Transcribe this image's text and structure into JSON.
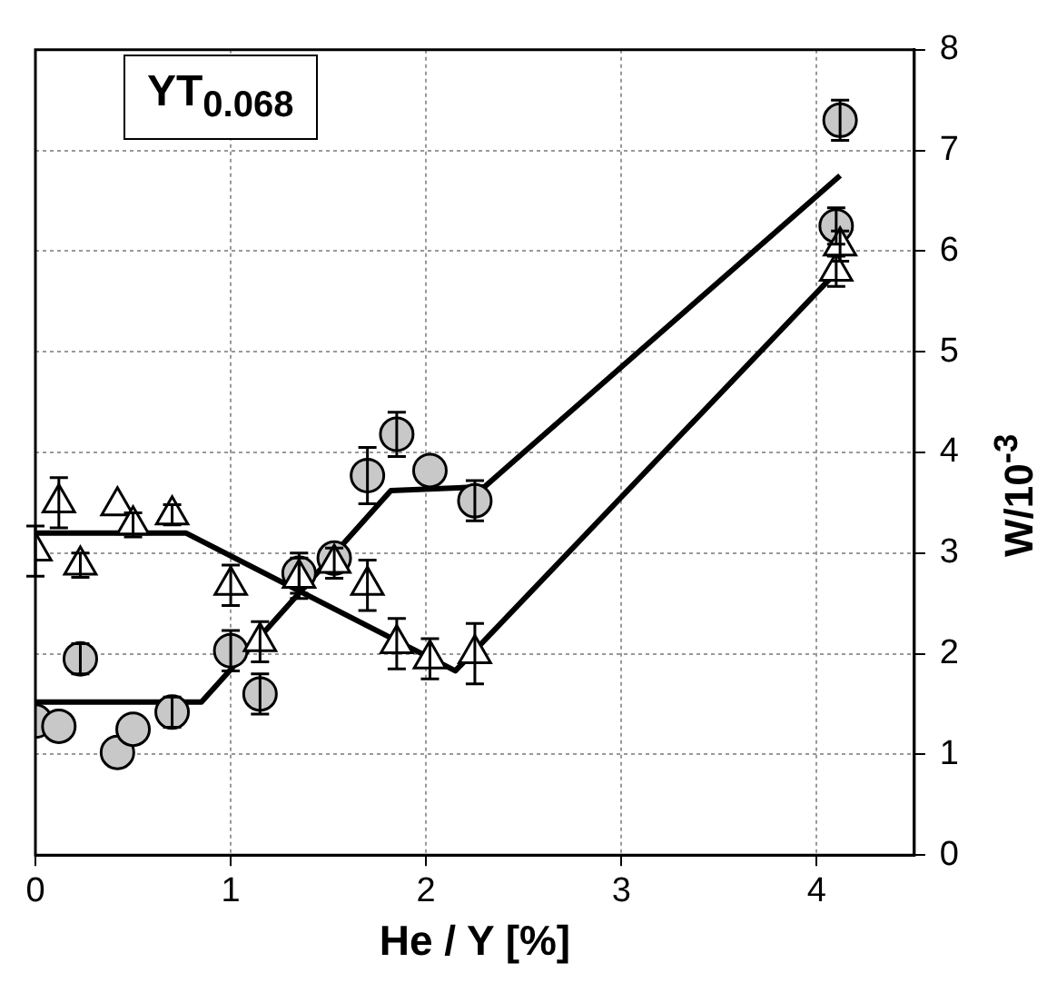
{
  "chart_data": {
    "type": "scatter",
    "xlabel": "He / Y [%]",
    "ylabel": "W/10$^{-3}$",
    "annotations": [
      "YT$_{0.068}$"
    ],
    "xlim": [
      0,
      4.5
    ],
    "xticks": [
      0,
      1,
      2,
      3,
      4
    ],
    "ylim": [
      0,
      8
    ],
    "yticks": [
      0,
      1,
      2,
      3,
      4,
      5,
      6,
      7,
      8
    ],
    "grid": true,
    "legend": false,
    "series": [
      {
        "marker": "circle",
        "color": "#c8c8c8",
        "x": [
          0,
          0.12,
          0.23,
          0.42,
          0.5,
          0.7,
          1.0,
          1.15,
          1.35,
          1.53,
          1.7,
          1.85,
          2.02,
          2.25,
          4.1,
          4.12
        ],
        "values": [
          1.33,
          1.28,
          1.95,
          1.02,
          1.25,
          1.42,
          2.03,
          1.6,
          2.8,
          2.95,
          3.77,
          4.18,
          3.82,
          3.52,
          6.25,
          7.3
        ],
        "errors": [
          null,
          null,
          0.15,
          null,
          null,
          0.15,
          0.2,
          0.2,
          0.2,
          null,
          0.28,
          0.22,
          null,
          0.2,
          0.18,
          0.2
        ]
      },
      {
        "marker": "triangle",
        "color": "#ffffff",
        "x": [
          0,
          0.12,
          0.23,
          0.42,
          0.5,
          0.7,
          1.0,
          1.15,
          1.35,
          1.53,
          1.7,
          1.85,
          2.02,
          2.25,
          4.1,
          4.12
        ],
        "values": [
          3.02,
          3.5,
          2.88,
          3.47,
          3.28,
          3.38,
          2.68,
          2.12,
          2.75,
          2.9,
          2.68,
          2.1,
          1.95,
          2.0,
          5.8,
          6.05
        ],
        "errors": [
          0.25,
          0.25,
          0.12,
          null,
          0.12,
          0.1,
          0.2,
          0.2,
          0.2,
          0.15,
          0.25,
          0.25,
          0.2,
          0.3,
          0.15,
          0.15
        ]
      },
      {
        "type": "line",
        "marker": "none",
        "color": "#000000",
        "x": [
          0,
          0.85,
          1.82,
          2.3,
          4.12
        ],
        "values": [
          1.52,
          1.52,
          3.62,
          3.66,
          6.75
        ]
      },
      {
        "type": "line",
        "marker": "none",
        "color": "#000000",
        "x": [
          0,
          0.77,
          2.15,
          4.08
        ],
        "values": [
          3.2,
          3.2,
          1.83,
          5.75
        ]
      }
    ]
  }
}
